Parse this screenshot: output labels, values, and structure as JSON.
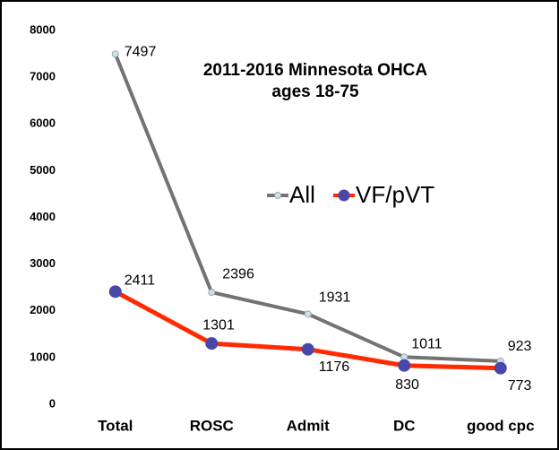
{
  "chart_data": {
    "type": "line",
    "title": "2011-2016 Minnesota OHCA",
    "subtitle": "ages 18-75",
    "categories": [
      "Total",
      "ROSC",
      "Admit",
      "DC",
      "good cpc"
    ],
    "series": [
      {
        "name": "All",
        "color": "#737373",
        "marker_color": "#c8e4ea",
        "values": [
          7497,
          2396,
          1931,
          1011,
          923
        ]
      },
      {
        "name": "VF/pVT",
        "color": "#ff2a00",
        "marker_color": "#4848a8",
        "values": [
          2411,
          1301,
          1176,
          830,
          773
        ]
      }
    ],
    "ylim": [
      0,
      8000
    ],
    "yticks": [
      0,
      1000,
      2000,
      3000,
      4000,
      5000,
      6000,
      7000,
      8000
    ],
    "grid": false
  }
}
